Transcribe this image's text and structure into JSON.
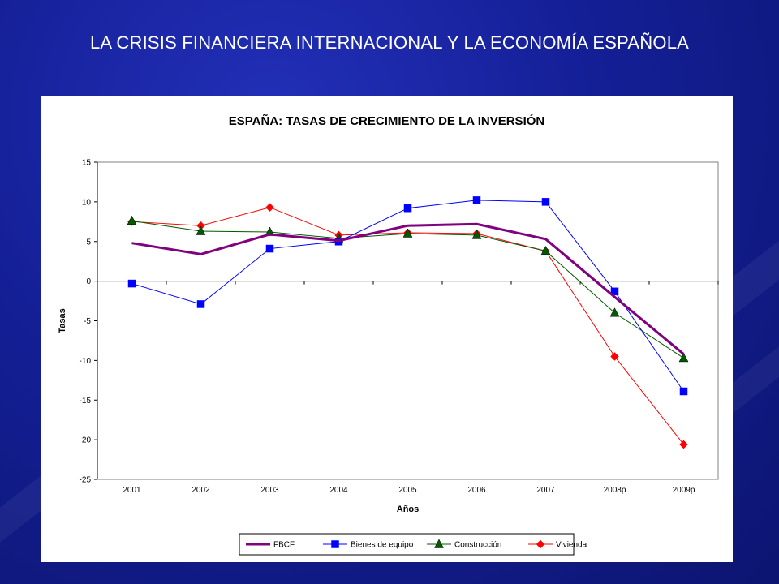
{
  "slide": {
    "title": "LA CRISIS FINANCIERA INTERNACIONAL  Y LA ECONOMÍA ESPAÑOLA",
    "background_color": "#141f96"
  },
  "chart_data": {
    "type": "line",
    "title": "ESPAÑA: TASAS DE CRECIMIENTO DE LA INVERSIÓN",
    "xlabel": "Años",
    "ylabel": "Tasas",
    "categories": [
      "2001",
      "2002",
      "2003",
      "2004",
      "2005",
      "2006",
      "2007",
      "2008p",
      "2009p"
    ],
    "ylim": [
      -25,
      15
    ],
    "yticks": [
      15,
      10,
      5,
      0,
      -5,
      -10,
      -15,
      -20,
      -25
    ],
    "grid": false,
    "legend_position": "bottom",
    "series": [
      {
        "name": "FBCF",
        "color": "#800080",
        "marker": "none",
        "values": [
          4.8,
          3.4,
          5.9,
          5.1,
          7.0,
          7.2,
          5.3,
          -2.0,
          -9.2
        ]
      },
      {
        "name": "Bienes de equipo",
        "color": "#0000ff",
        "marker": "square",
        "values": [
          -0.3,
          -2.9,
          4.1,
          5.0,
          9.2,
          10.2,
          10.0,
          -1.3,
          -13.9
        ]
      },
      {
        "name": "Construcción",
        "color": "#005a00",
        "marker": "triangle",
        "values": [
          7.6,
          6.3,
          6.2,
          5.4,
          6.0,
          5.8,
          3.8,
          -4.0,
          -9.7
        ]
      },
      {
        "name": "Vivienda",
        "color": "#ff0000",
        "marker": "diamond",
        "values": [
          7.5,
          7.0,
          9.3,
          5.8,
          6.1,
          6.0,
          3.8,
          -9.5,
          -20.6
        ]
      }
    ]
  }
}
